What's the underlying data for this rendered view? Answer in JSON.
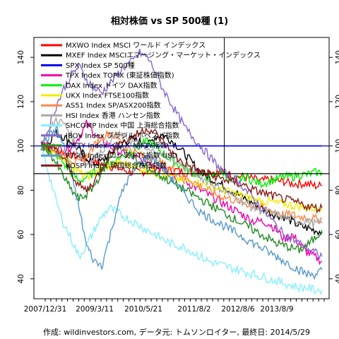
{
  "chart_data": {
    "type": "line",
    "title": "相対株価 vs SP 500種 (1)",
    "caption": "作成: wildinvestors.com, データ元: トムソンロイター, 最終日: 2014/5/29",
    "xlabel": "",
    "ylabel": "",
    "x_ticks": [
      "2007/12/31",
      "2009/3/11",
      "2010/5/21",
      "2011/8/2",
      "2012/8/6",
      "2013/8/9"
    ],
    "y_ticks": [
      40,
      60,
      80,
      100,
      120,
      140
    ],
    "ylim": [
      31,
      149
    ],
    "grid": false,
    "legend_position": "top-left",
    "reference_lines": [
      {
        "type": "horizontal",
        "value": 100,
        "color": "#0000ee"
      },
      {
        "type": "horizontal",
        "value": 87.5,
        "color": "#000000"
      },
      {
        "type": "vertical",
        "at": "2012/4",
        "color": "#000000"
      }
    ],
    "series": [
      {
        "name": "MXWO Index MSCI ワールド インデックス",
        "color": "#ff0000",
        "values": [
          100,
          99,
          98,
          97,
          96,
          95,
          94,
          93,
          92,
          91,
          90,
          89,
          88,
          88,
          89,
          90,
          90,
          89,
          89,
          88,
          88,
          88,
          89,
          88,
          88,
          87,
          86,
          86,
          85,
          84,
          85,
          84,
          84,
          83,
          83,
          83,
          82,
          82
        ]
      },
      {
        "name": "MXEF Index MSCIエマージング・マーケット・インデックス",
        "color": "#000000",
        "values": [
          100,
          102,
          106,
          104,
          102,
          98,
          95,
          92,
          93,
          96,
          100,
          102,
          103,
          102,
          100,
          104,
          105,
          103,
          100,
          96,
          92,
          88,
          86,
          84,
          82,
          80,
          78,
          76,
          74,
          72,
          70,
          69,
          68,
          66,
          64,
          63,
          62,
          61
        ]
      },
      {
        "name": "SPX Index SP 500種",
        "color": "#0000ee",
        "values": [
          100,
          100,
          100,
          100,
          100,
          100,
          100,
          100,
          100,
          100,
          100,
          100,
          100,
          100,
          100,
          100,
          100,
          100,
          100,
          100,
          100,
          100,
          100,
          100,
          100,
          100,
          100,
          100,
          100,
          100,
          100,
          100,
          100,
          100,
          100,
          100,
          100,
          100
        ]
      },
      {
        "name": "TPX Index TOPIX (東証株価指数)",
        "color": "#ee00aa",
        "values": [
          100,
          100,
          99,
          98,
          100,
          104,
          110,
          106,
          102,
          100,
          98,
          96,
          95,
          94,
          93,
          92,
          90,
          88,
          86,
          84,
          82,
          80,
          78,
          76,
          74,
          72,
          70,
          68,
          66,
          66,
          65,
          62,
          58,
          60,
          56,
          52,
          50,
          48
        ]
      },
      {
        "name": "DAX Index ドイツ DAX指数",
        "color": "#00ee00",
        "values": [
          100,
          98,
          96,
          92,
          88,
          84,
          86,
          88,
          90,
          92,
          94,
          96,
          98,
          100,
          102,
          100,
          97,
          94,
          92,
          90,
          88,
          87,
          86,
          87,
          88,
          84,
          85,
          86,
          84,
          83,
          84,
          85,
          86,
          86,
          87,
          87,
          88,
          88
        ]
      },
      {
        "name": "UKX Index FTSE100指数",
        "color": "#eeee00",
        "values": [
          100,
          99,
          97,
          95,
          92,
          88,
          86,
          88,
          90,
          91,
          92,
          92,
          91,
          90,
          89,
          88,
          87,
          86,
          85,
          84,
          84,
          83,
          82,
          81,
          80,
          79,
          78,
          77,
          76,
          75,
          75,
          74,
          74,
          73,
          73,
          72,
          72,
          72
        ]
      },
      {
        "name": "AS51 Index SP/ASX200指数",
        "color": "#ff8844",
        "values": [
          100,
          99,
          97,
          96,
          94,
          92,
          95,
          100,
          104,
          106,
          104,
          100,
          98,
          96,
          95,
          94,
          92,
          90,
          88,
          86,
          84,
          82,
          80,
          78,
          77,
          76,
          75,
          74,
          73,
          72,
          71,
          70,
          69,
          69,
          68,
          68,
          67,
          67
        ]
      },
      {
        "name": "HSI Index 香港 ハンセン指数",
        "color": "#aaaaaa",
        "values": [
          100,
          106,
          112,
          110,
          105,
          96,
          92,
          94,
          98,
          102,
          105,
          104,
          102,
          100,
          98,
          97,
          96,
          95,
          93,
          90,
          88,
          86,
          84,
          82,
          80,
          78,
          76,
          74,
          72,
          71,
          70,
          69,
          68,
          67,
          66,
          66,
          65,
          65
        ]
      },
      {
        "name": "SHCOMP Index 中国 上海総合指数",
        "color": "#88eeff",
        "values": [
          100,
          88,
          75,
          65,
          58,
          50,
          55,
          62,
          68,
          72,
          70,
          68,
          66,
          64,
          62,
          60,
          58,
          56,
          55,
          54,
          52,
          50,
          48,
          47,
          46,
          45,
          44,
          43,
          42,
          41,
          40,
          39,
          38,
          37,
          36,
          36,
          35,
          35
        ]
      },
      {
        "name": "IBOV Index ブラジル ボベスパ指数",
        "color": "#8866cc",
        "values": [
          100,
          108,
          118,
          126,
          132,
          136,
          130,
          126,
          124,
          128,
          132,
          136,
          138,
          142,
          140,
          134,
          126,
          120,
          114,
          108,
          104,
          100,
          96,
          92,
          88,
          86,
          84,
          80,
          76,
          72,
          68,
          64,
          60,
          58,
          56,
          54,
          52,
          50
        ]
      },
      {
        "name": "NIFTY Index インド NIFTY指数",
        "color": "#228b22",
        "values": [
          100,
          98,
          92,
          86,
          80,
          76,
          78,
          82,
          88,
          94,
          100,
          98,
          95,
          92,
          90,
          88,
          86,
          84,
          82,
          80,
          78,
          76,
          74,
          72,
          70,
          68,
          66,
          64,
          62,
          60,
          58,
          56,
          55,
          54,
          53,
          55,
          58,
          62
        ]
      },
      {
        "name": "RTSI$ Index ロシア RTS指数 USD",
        "color": "#5599cc",
        "values": [
          100,
          104,
          108,
          100,
          88,
          72,
          55,
          48,
          46,
          58,
          72,
          82,
          88,
          92,
          95,
          94,
          90,
          86,
          82,
          78,
          74,
          70,
          68,
          66,
          64,
          62,
          60,
          58,
          56,
          54,
          52,
          50,
          48,
          46,
          44,
          42,
          42,
          44
        ]
      },
      {
        "name": "KOSPI Index 韓国総合株価指数",
        "color": "#8b1a1a",
        "values": [
          100,
          100,
          98,
          94,
          88,
          82,
          80,
          84,
          90,
          96,
          100,
          102,
          104,
          106,
          108,
          106,
          102,
          98,
          94,
          92,
          90,
          88,
          87,
          86,
          85,
          84,
          83,
          82,
          80,
          79,
          78,
          77,
          76,
          75,
          74,
          73,
          72,
          72
        ]
      }
    ]
  }
}
